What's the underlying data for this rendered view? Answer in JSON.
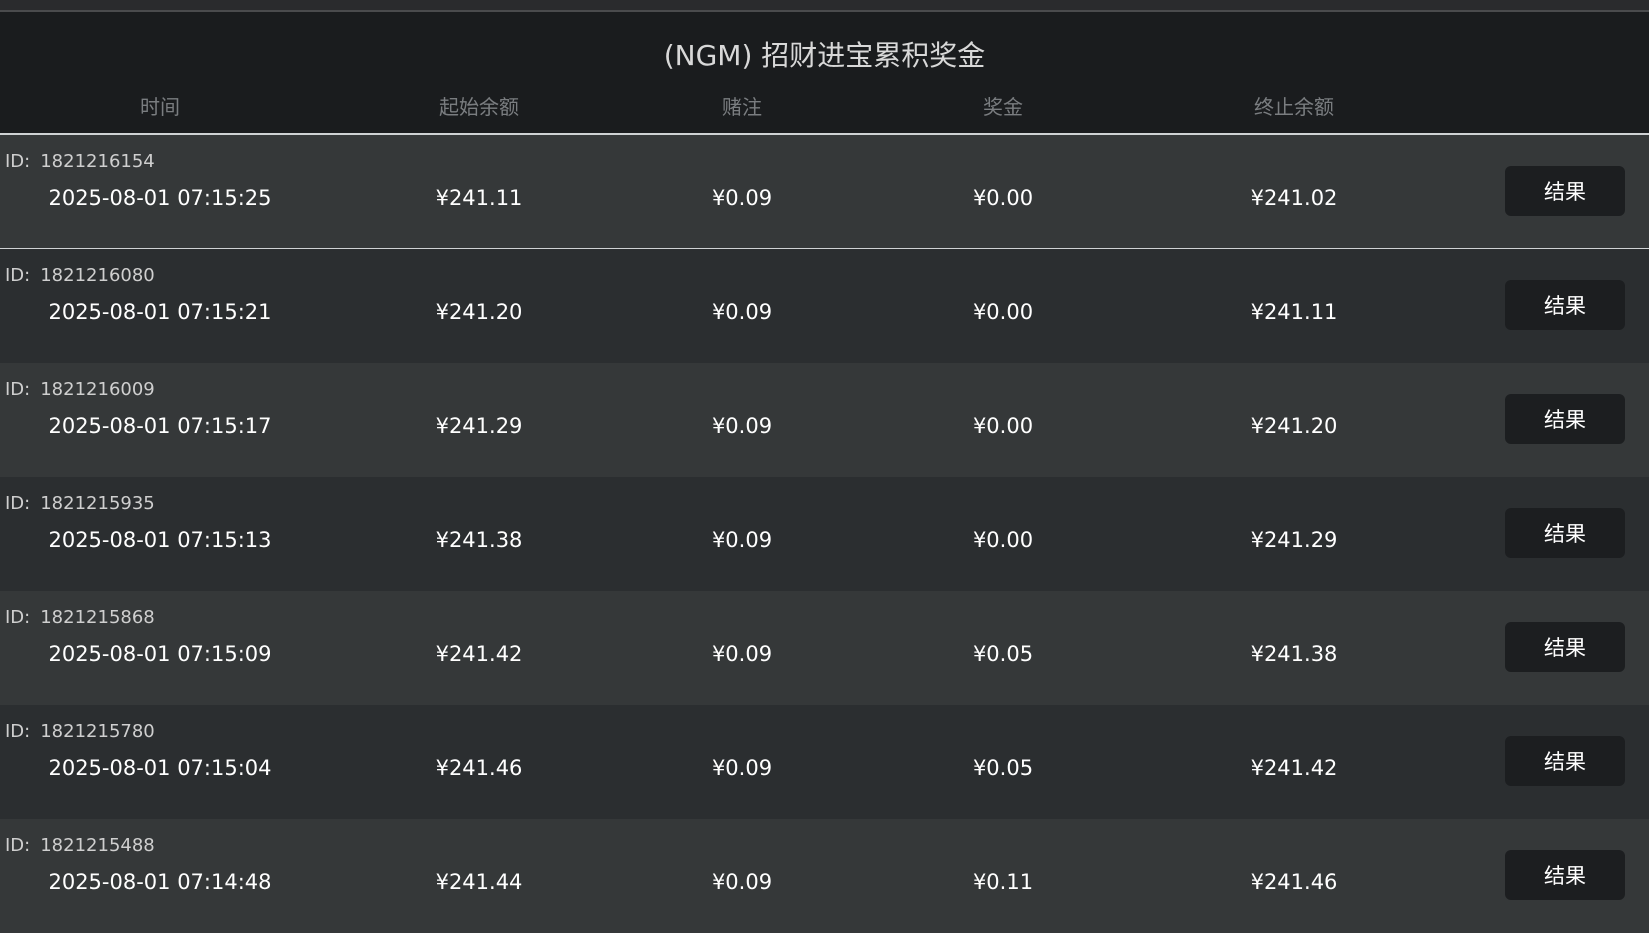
{
  "title": "(NGM) 招财进宝累积奖金",
  "columns": [
    "时间",
    "起始余额",
    "赌注",
    "奖金",
    "终止余额"
  ],
  "id_label": "ID:",
  "result_label": "结果",
  "rows": [
    {
      "id": "1821216154",
      "time": "2025-08-01 07:15:25",
      "start": "¥241.11",
      "bet": "¥0.09",
      "prize": "¥0.00",
      "end": "¥241.02"
    },
    {
      "id": "1821216080",
      "time": "2025-08-01 07:15:21",
      "start": "¥241.20",
      "bet": "¥0.09",
      "prize": "¥0.00",
      "end": "¥241.11"
    },
    {
      "id": "1821216009",
      "time": "2025-08-01 07:15:17",
      "start": "¥241.29",
      "bet": "¥0.09",
      "prize": "¥0.00",
      "end": "¥241.20"
    },
    {
      "id": "1821215935",
      "time": "2025-08-01 07:15:13",
      "start": "¥241.38",
      "bet": "¥0.09",
      "prize": "¥0.00",
      "end": "¥241.29"
    },
    {
      "id": "1821215868",
      "time": "2025-08-01 07:15:09",
      "start": "¥241.42",
      "bet": "¥0.09",
      "prize": "¥0.05",
      "end": "¥241.38"
    },
    {
      "id": "1821215780",
      "time": "2025-08-01 07:15:04",
      "start": "¥241.46",
      "bet": "¥0.09",
      "prize": "¥0.05",
      "end": "¥241.42"
    },
    {
      "id": "1821215488",
      "time": "2025-08-01 07:14:48",
      "start": "¥241.44",
      "bet": "¥0.09",
      "prize": "¥0.11",
      "end": "¥241.46"
    }
  ]
}
